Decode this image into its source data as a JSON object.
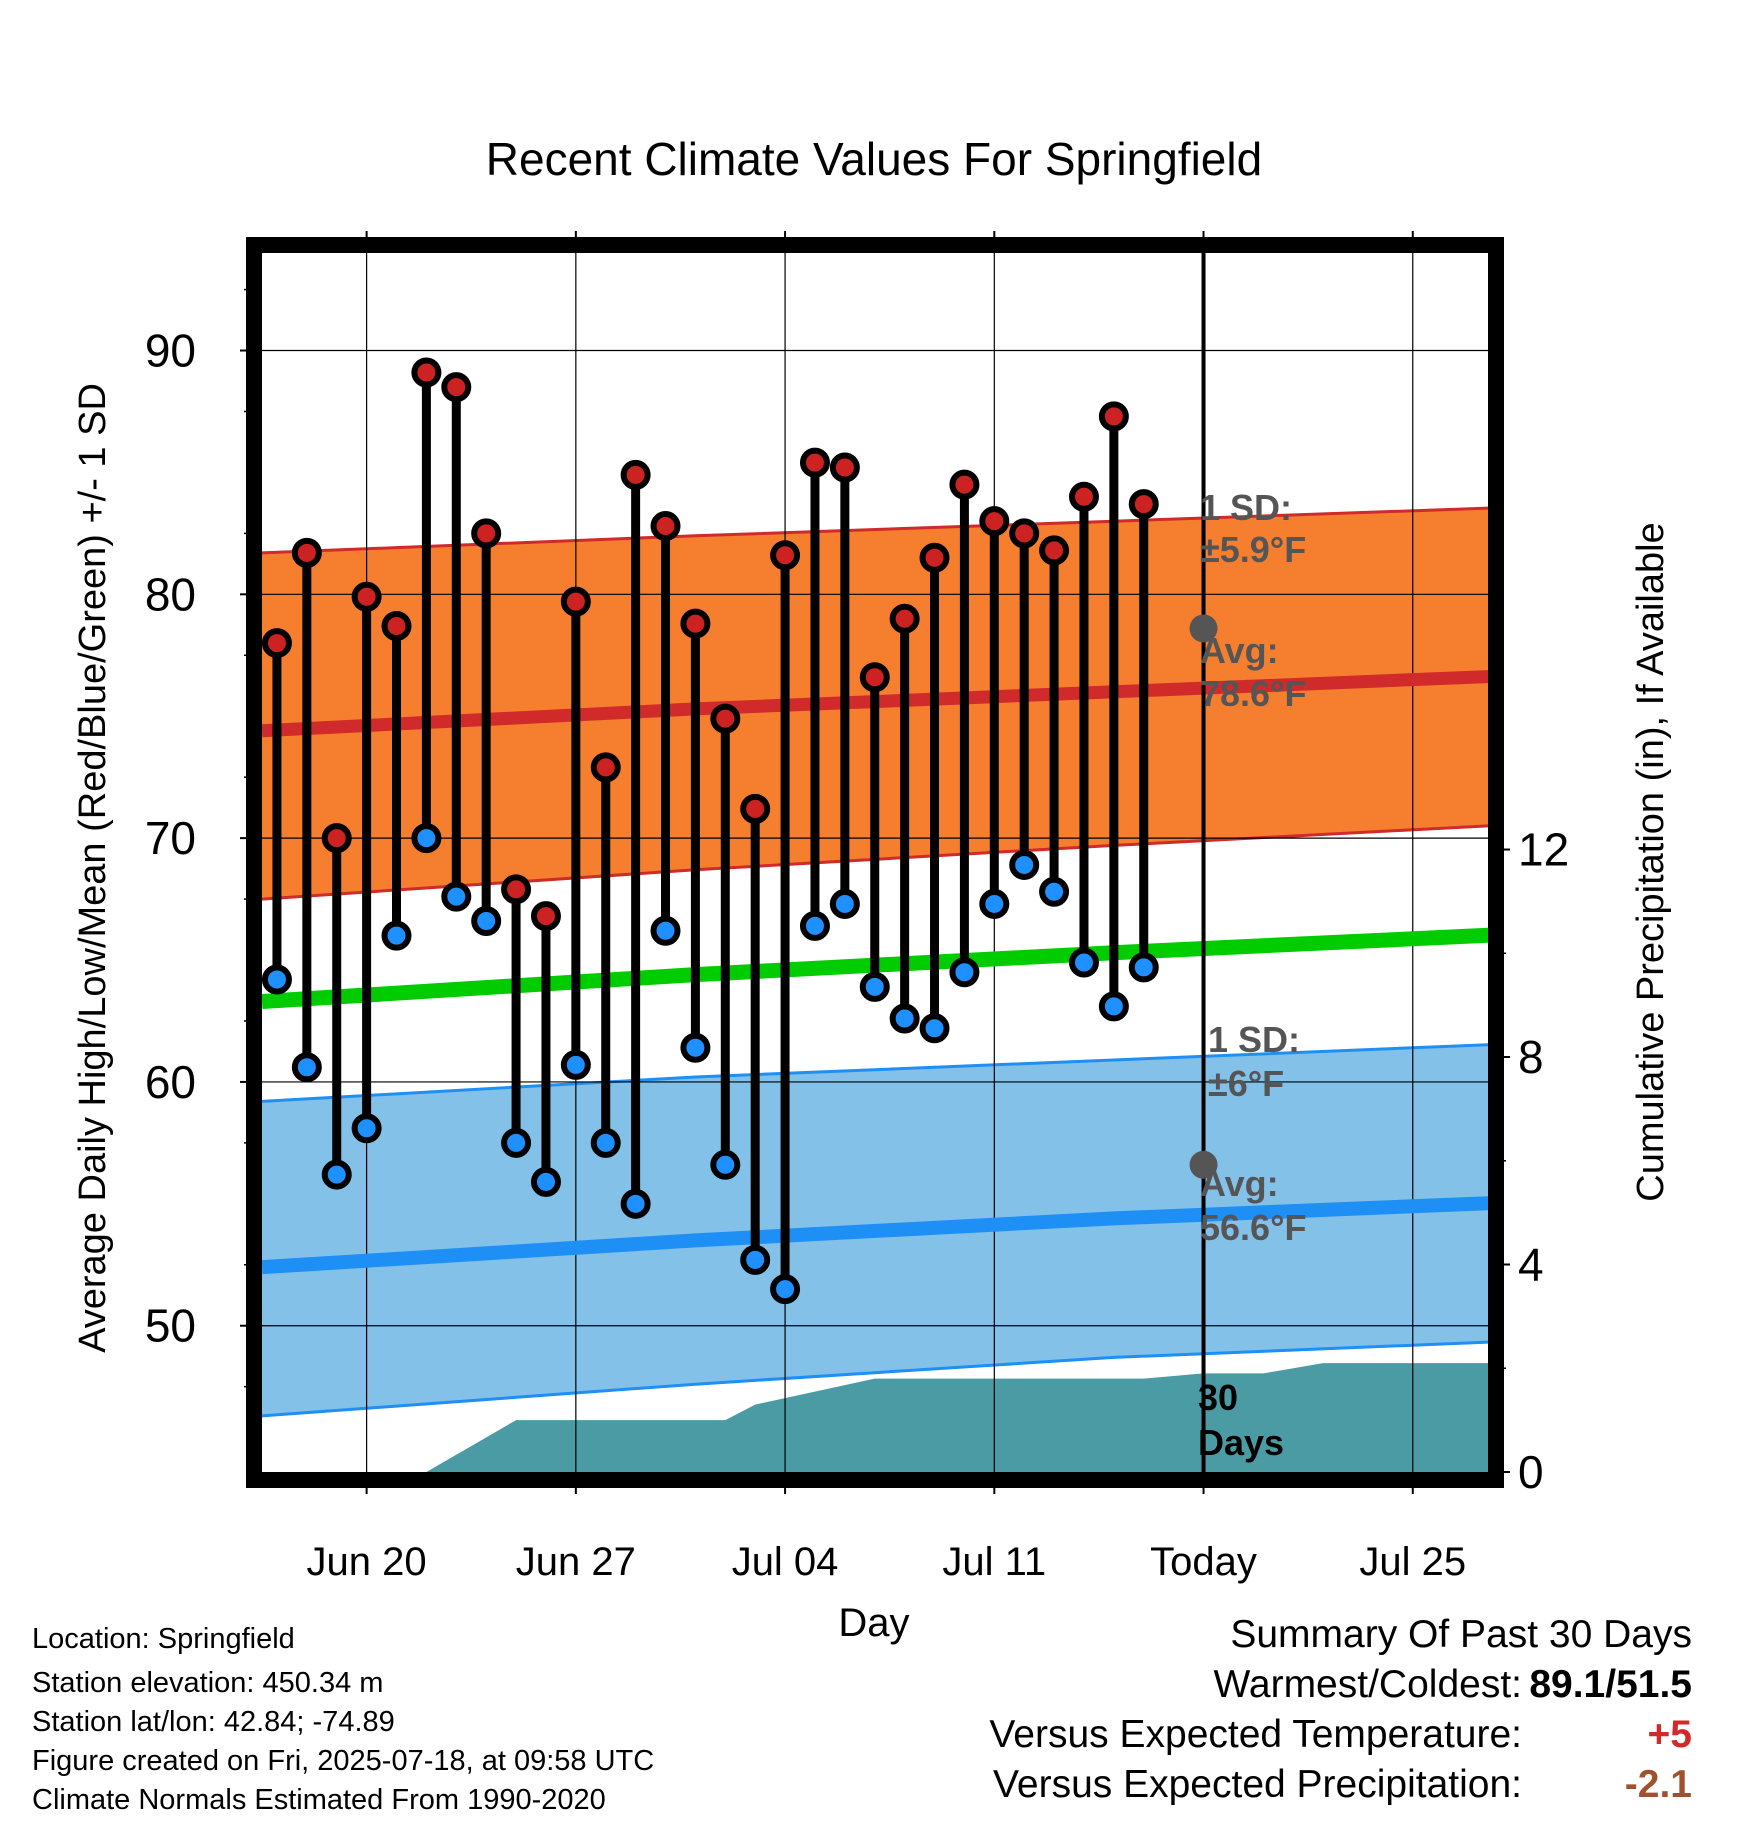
{
  "chart_data": {
    "type": "line",
    "title": "Recent Climate Values For Springfield",
    "xlabel": "Day",
    "ylabel": "Average Daily High/Low/Mean (Red/Blue/Green) +/- 1 SD",
    "ylabel_right": "Cumulative Precipitation (in), If Available",
    "ylim": [
      44,
      94
    ],
    "ylim_right": [
      0,
      23.5
    ],
    "x_ticks": [
      "Jun 20",
      "Jun 27",
      "Jul 04",
      "Jul 11",
      "Today",
      "Jul 25"
    ],
    "y_ticks": [
      50,
      60,
      70,
      80,
      90
    ],
    "y_ticks_right": [
      0,
      4,
      8,
      12
    ],
    "grid": true,
    "days": [
      "Jun 17",
      "Jun 18",
      "Jun 19",
      "Jun 20",
      "Jun 21",
      "Jun 22",
      "Jun 23",
      "Jun 24",
      "Jun 25",
      "Jun 26",
      "Jun 27",
      "Jun 28",
      "Jun 29",
      "Jun 30",
      "Jul 01",
      "Jul 02",
      "Jul 03",
      "Jul 04",
      "Jul 05",
      "Jul 06",
      "Jul 07",
      "Jul 08",
      "Jul 09",
      "Jul 10",
      "Jul 11",
      "Jul 12",
      "Jul 13",
      "Jul 14",
      "Jul 15",
      "Jul 16",
      "Jul 17"
    ],
    "daily_high": [
      78.0,
      81.7,
      70.0,
      79.9,
      78.7,
      89.1,
      88.5,
      82.5,
      67.9,
      66.8,
      79.7,
      72.9,
      84.9,
      82.8,
      78.8,
      74.9,
      71.2,
      81.6,
      85.4,
      85.2,
      76.6,
      79.0,
      81.5,
      84.5,
      83.0,
      82.5,
      81.8,
      84.0,
      87.3,
      83.7,
      null
    ],
    "daily_low": [
      64.2,
      60.6,
      56.2,
      58.1,
      66.0,
      70.0,
      67.6,
      66.6,
      57.5,
      55.9,
      60.7,
      57.5,
      55.0,
      66.2,
      61.4,
      56.6,
      52.7,
      51.5,
      66.4,
      67.3,
      63.9,
      62.6,
      62.2,
      64.5,
      67.3,
      68.9,
      67.8,
      64.9,
      63.1,
      64.7,
      null
    ],
    "normal_high": {
      "day": [
        -0.5,
        14,
        28,
        42,
        56,
        70,
        84,
        98,
        112,
        126,
        140,
        154
      ],
      "avg": [
        74.4,
        75.3,
        76.0,
        76.7,
        77.3,
        77.9,
        78.3,
        78.5,
        78.6,
        78.6,
        78.5,
        78.2
      ],
      "minus_1sd": [
        67.5,
        68.7,
        69.7,
        70.6,
        71.3,
        71.9,
        72.4,
        72.7,
        72.9,
        73.0,
        73.0,
        72.9
      ],
      "plus_1sd": [
        81.7,
        82.4,
        83.0,
        83.6,
        84.0,
        84.3,
        84.5,
        84.5,
        84.6,
        84.5,
        84.4,
        84.1
      ]
    },
    "normal_mean": [
      63.3,
      64.4,
      65.3,
      66.1,
      66.7,
      67.1,
      67.4,
      67.5,
      67.6,
      67.6,
      67.5,
      67.4
    ],
    "normal_low": {
      "avg": [
        52.4,
        53.5,
        54.4,
        55.1,
        55.7,
        56.1,
        56.4,
        56.5,
        56.6,
        56.6,
        56.6,
        56.5
      ],
      "minus_1sd": [
        46.3,
        47.6,
        48.7,
        49.4,
        49.9,
        50.3,
        50.6,
        50.8,
        51.0,
        51.0,
        51.0,
        50.9
      ],
      "plus_1sd": [
        59.2,
        60.2,
        60.9,
        61.6,
        62.0,
        62.3,
        62.5,
        62.6,
        62.7,
        62.7,
        62.6,
        62.5
      ]
    },
    "cumulative_precip": {
      "day": [
        4,
        5,
        8,
        9,
        13,
        14,
        15,
        16,
        20,
        21,
        24,
        25,
        27,
        29,
        31,
        33,
        35,
        37,
        40,
        42,
        45,
        47,
        50,
        52,
        55,
        57,
        59,
        62,
        65,
        68,
        70,
        73,
        75,
        78,
        81,
        85,
        90,
        95,
        100,
        105,
        110,
        114
      ],
      "inches": [
        0,
        0,
        1.0,
        1.0,
        1.0,
        1.0,
        1.0,
        1.3,
        1.8,
        1.8,
        1.8,
        1.8,
        1.8,
        1.8,
        1.9,
        1.9,
        2.1,
        2.1,
        2.1,
        2.1,
        2.1,
        2.1,
        2.1,
        2.3,
        2.3,
        2.3,
        2.3,
        2.3,
        2.3,
        2.3,
        2.3,
        2.3,
        2.3,
        2.3,
        2.3,
        2.4,
        2.4,
        2.4,
        2.4,
        2.4,
        2.4,
        2.4
      ]
    },
    "annotations": {
      "high_sd": "1 SD:",
      "high_sd_value": "±5.9°F",
      "high_avg": "Avg:",
      "high_avg_value": "78.6°F",
      "low_sd": "1 SD:",
      "low_sd_value": "±6°F",
      "low_avg": "Avg:",
      "low_avg_value": "56.6°F",
      "precip_days": "30",
      "precip_days_label": "Days"
    },
    "colors": {
      "high_band": "#f57f2f",
      "high_avg": "#d02a2a",
      "high_edge": "#d02a2a",
      "low_band": "#84c1e8",
      "low_avg": "#1e8ff5",
      "low_edge": "#1e8ff5",
      "mean": "#00cc00",
      "precip": "#4a9ba3",
      "high_marker": "#cc2222",
      "low_marker": "#1e90ff",
      "annotation": "#555555"
    }
  },
  "info": {
    "location": "Location: Springfield",
    "elevation": "Station elevation: 450.34 m",
    "latlon": "Station lat/lon: 42.84; -74.89",
    "created": "Figure created on Fri, 2025-07-18, at 09:58 UTC",
    "normals": "Climate Normals Estimated From 1990-2020"
  },
  "summary": {
    "heading": "Summary Of Past 30 Days",
    "warmest_label": "Warmest/Coldest:",
    "warmest_value": "89.1/51.5",
    "temp_label": "Versus Expected Temperature:",
    "temp_value": "+5",
    "precip_label": "Versus Expected Precipitation:",
    "precip_value": "-2.1"
  }
}
